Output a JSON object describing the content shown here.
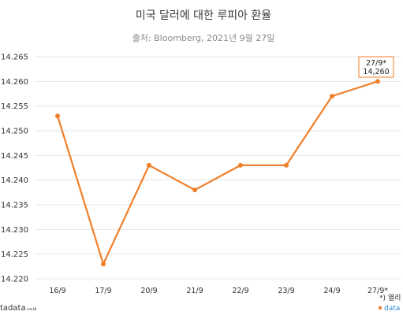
{
  "chart_data": {
    "type": "line",
    "title": "미국 달러에 대한 루피아 환율",
    "subtitle": "출처: Bloomberg, 2021년 9월 27일",
    "categories": [
      "16/9",
      "17/9",
      "20/9",
      "21/9",
      "22/9",
      "23/9",
      "24/9",
      "27/9*"
    ],
    "series": [
      {
        "values": [
          14253,
          14223,
          14243,
          14238,
          14243,
          14243,
          14257,
          14260
        ]
      }
    ],
    "yticks": [
      "14.220",
      "14.225",
      "14.230",
      "14.235",
      "14.240",
      "14.245",
      "14.250",
      "14.255",
      "14.260",
      "14.265"
    ],
    "ylim": [
      14220,
      14265
    ],
    "grid": true,
    "callout": {
      "line1": "27/9*",
      "line2": "14,260"
    },
    "color": "#f07f2a"
  },
  "footer": {
    "left_brand": "tadata",
    "left_brand_suffix": ".co.id",
    "right_note": "*) 열리",
    "right_brand": "data"
  }
}
